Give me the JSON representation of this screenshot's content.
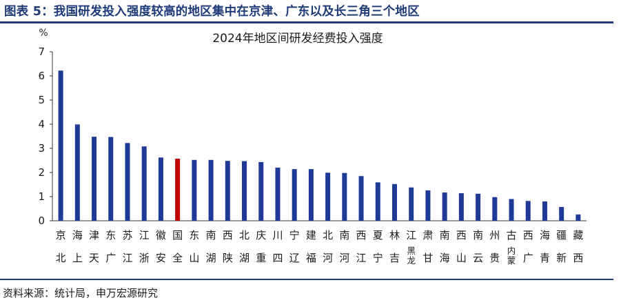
{
  "figure": {
    "title": "图表 5：我国研发投入强度较高的地区集中在京津、广东以及长三角三个地区",
    "source": "资料来源：统计局，申万宏源研究"
  },
  "colors": {
    "normal": "#1f3a96",
    "highlight": "#c00000",
    "title": "#1f3a78"
  },
  "chart_data": {
    "type": "bar",
    "title": "2024年地区间研发经费投入强度",
    "ylabel": "%",
    "ylim": [
      0,
      7
    ],
    "yticks": [
      0,
      1,
      2,
      3,
      4,
      5,
      6,
      7
    ],
    "grid": false,
    "categories": [
      "北京",
      "上海",
      "天津",
      "广东",
      "江苏",
      "浙江",
      "安徽",
      "全国",
      "山东",
      "湖南",
      "陕西",
      "湖北",
      "重庆",
      "四川",
      "辽宁",
      "福建",
      "河北",
      "河南",
      "江西",
      "宁夏",
      "吉林",
      "黑龙江",
      "甘肃",
      "海南",
      "山西",
      "云南",
      "贵州",
      "内蒙古",
      "广西",
      "青海",
      "新疆",
      "西藏"
    ],
    "values": [
      6.22,
      3.99,
      3.48,
      3.47,
      3.22,
      3.08,
      2.62,
      2.57,
      2.52,
      2.52,
      2.48,
      2.47,
      2.43,
      2.2,
      2.14,
      2.14,
      1.99,
      1.98,
      1.85,
      1.59,
      1.52,
      1.38,
      1.26,
      1.17,
      1.14,
      1.12,
      0.98,
      0.9,
      0.82,
      0.8,
      0.57,
      0.26
    ],
    "highlight_category": "全国"
  }
}
